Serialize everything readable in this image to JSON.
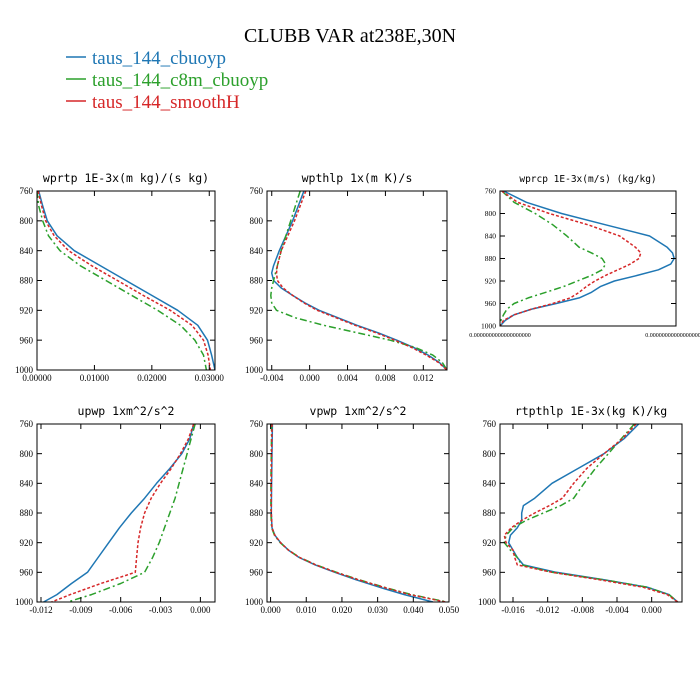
{
  "figure": {
    "title": "CLUBB VAR at238E,30N"
  },
  "legend": {
    "placement": "top-left",
    "entries": [
      {
        "label": "taus_144_cbuoyp",
        "color": "#1f77b4"
      },
      {
        "label": "taus_144_c8m_cbuoyp",
        "color": "#2ca02c"
      },
      {
        "label": "taus_144_smoothH",
        "color": "#d62728"
      }
    ]
  },
  "chart_data": [
    {
      "type": "line",
      "title": "wprtp  1E-3x(m kg)/(s kg)",
      "xlim": [
        0,
        0.031
      ],
      "ylim": [
        760,
        1000
      ],
      "yticks": [
        760,
        800,
        840,
        880,
        920,
        960,
        1000
      ],
      "ytick_labels": [
        "760",
        "800",
        "840",
        "880",
        "920",
        "960",
        "1000"
      ],
      "xticks": [
        0,
        0.01,
        0.02,
        0.03
      ],
      "xtick_labels": [
        "0.00000",
        "0.01000",
        "0.02000",
        "0.03000"
      ],
      "y": [
        760,
        780,
        800,
        820,
        840,
        860,
        880,
        900,
        920,
        940,
        960,
        980,
        1000
      ],
      "series": [
        {
          "name": "taus_144_cbuoyp",
          "values": [
            0.0003,
            0.001,
            0.0018,
            0.0035,
            0.0065,
            0.011,
            0.0155,
            0.02,
            0.0245,
            0.028,
            0.0297,
            0.0304,
            0.031
          ]
        },
        {
          "name": "taus_144_c8m_cbuoyp",
          "values": [
            0,
            0.0003,
            0.001,
            0.002,
            0.004,
            0.0075,
            0.012,
            0.0165,
            0.021,
            0.025,
            0.0275,
            0.029,
            0.0295
          ]
        },
        {
          "name": "taus_144_smoothH",
          "values": [
            0.0002,
            0.0008,
            0.0015,
            0.003,
            0.0055,
            0.0095,
            0.014,
            0.0185,
            0.0232,
            0.027,
            0.029,
            0.0298,
            0.0302
          ]
        }
      ]
    },
    {
      "type": "line",
      "title": "wpthlp  1x(m K)/s",
      "xlim": [
        -0.0045,
        0.0145
      ],
      "ylim": [
        760,
        1000
      ],
      "yticks": [
        760,
        800,
        840,
        880,
        920,
        960,
        1000
      ],
      "ytick_labels": [
        "760",
        "800",
        "840",
        "880",
        "920",
        "960",
        "1000"
      ],
      "xticks": [
        -0.004,
        0,
        0.004,
        0.008,
        0.012
      ],
      "xtick_labels": [
        "-0.004",
        "0.000",
        "0.004",
        "0.008",
        "0.012"
      ],
      "y": [
        760,
        780,
        800,
        820,
        840,
        860,
        870,
        880,
        890,
        900,
        910,
        920,
        930,
        940,
        950,
        960,
        970,
        980,
        990,
        1000
      ],
      "series": [
        {
          "name": "taus_144_cbuoyp",
          "values": [
            -0.0006,
            -0.0012,
            -0.0018,
            -0.0025,
            -0.0032,
            -0.0038,
            -0.004,
            -0.0038,
            -0.003,
            -0.0018,
            -0.0005,
            0.001,
            0.003,
            0.005,
            0.0072,
            0.0092,
            0.011,
            0.0125,
            0.0137,
            0.0145
          ]
        },
        {
          "name": "taus_144_c8m_cbuoyp",
          "values": [
            -0.001,
            -0.0015,
            -0.002,
            -0.0025,
            -0.003,
            -0.0034,
            -0.0036,
            -0.0038,
            -0.004,
            -0.0041,
            -0.004,
            -0.0035,
            -0.0015,
            0.0015,
            0.005,
            0.0085,
            0.0112,
            0.013,
            0.014,
            0.0145
          ]
        },
        {
          "name": "taus_144_smoothH",
          "values": [
            -0.0004,
            -0.001,
            -0.0016,
            -0.0023,
            -0.003,
            -0.0034,
            -0.0035,
            -0.0034,
            -0.0028,
            -0.0018,
            -0.0006,
            0.0008,
            0.0028,
            0.0048,
            0.007,
            0.009,
            0.0108,
            0.0123,
            0.0136,
            0.0145
          ]
        }
      ]
    },
    {
      "type": "line",
      "title": "wprcp  1E-3x(m/s) (kg/kg)",
      "xlim": [
        0,
        1
      ],
      "ylim": [
        760,
        1000
      ],
      "yticks": [
        760,
        800,
        840,
        880,
        920,
        960,
        1000
      ],
      "ytick_labels": [
        "760",
        "800",
        "840",
        "880",
        "920",
        "960",
        "1000"
      ],
      "xticks": [
        0,
        1
      ],
      "xtick_labels": [
        "0.0000000000000000000",
        "0.0000000000000000000"
      ],
      "y": [
        760,
        780,
        800,
        820,
        840,
        860,
        870,
        880,
        890,
        900,
        910,
        920,
        930,
        940,
        950,
        960,
        970,
        980,
        990,
        1000
      ],
      "series": [
        {
          "name": "taus_144_cbuoyp",
          "values": [
            0.02,
            0.15,
            0.35,
            0.6,
            0.85,
            0.95,
            0.98,
            0.99,
            0.97,
            0.9,
            0.78,
            0.65,
            0.57,
            0.52,
            0.45,
            0.32,
            0.18,
            0.08,
            0.03,
            0
          ]
        },
        {
          "name": "taus_144_c8m_cbuoyp",
          "values": [
            0.01,
            0.08,
            0.2,
            0.3,
            0.38,
            0.45,
            0.52,
            0.58,
            0.6,
            0.58,
            0.52,
            0.44,
            0.36,
            0.26,
            0.16,
            0.08,
            0.04,
            0.02,
            0.005,
            0
          ]
        },
        {
          "name": "taus_144_smoothH",
          "values": [
            0.01,
            0.1,
            0.28,
            0.5,
            0.68,
            0.77,
            0.8,
            0.79,
            0.74,
            0.67,
            0.6,
            0.54,
            0.49,
            0.45,
            0.4,
            0.3,
            0.18,
            0.08,
            0.02,
            0
          ]
        }
      ]
    },
    {
      "type": "line",
      "title": "upwp  1xm^2/s^2",
      "xlim": [
        -0.0123,
        0.0011
      ],
      "ylim": [
        760,
        1000
      ],
      "yticks": [
        760,
        800,
        840,
        880,
        920,
        960,
        1000
      ],
      "ytick_labels": [
        "760",
        "800",
        "840",
        "880",
        "920",
        "960",
        "1000"
      ],
      "xticks": [
        -0.012,
        -0.009,
        -0.006,
        -0.003,
        0
      ],
      "xtick_labels": [
        "-0.012",
        "-0.009",
        "-0.006",
        "-0.003",
        "0.000"
      ],
      "y": [
        760,
        780,
        800,
        820,
        840,
        860,
        880,
        900,
        920,
        940,
        960,
        975,
        990,
        1000
      ],
      "series": [
        {
          "name": "taus_144_cbuoyp",
          "values": [
            -0.0005,
            -0.0008,
            -0.0014,
            -0.0023,
            -0.0033,
            -0.0042,
            -0.0052,
            -0.0061,
            -0.0069,
            -0.0077,
            -0.0085,
            -0.0097,
            -0.0108,
            -0.0118
          ]
        },
        {
          "name": "taus_144_c8m_cbuoyp",
          "values": [
            -0.0004,
            -0.0007,
            -0.001,
            -0.0013,
            -0.0016,
            -0.0019,
            -0.0023,
            -0.0027,
            -0.0031,
            -0.0036,
            -0.0042,
            -0.006,
            -0.0082,
            -0.01
          ]
        },
        {
          "name": "taus_144_smoothH",
          "values": [
            -0.0005,
            -0.0009,
            -0.0015,
            -0.0022,
            -0.003,
            -0.0037,
            -0.0042,
            -0.0045,
            -0.0047,
            -0.0048,
            -0.0049,
            -0.0075,
            -0.0098,
            -0.0112
          ]
        }
      ]
    },
    {
      "type": "line",
      "title": "vpwp  1xm^2/s^2",
      "xlim": [
        -0.001,
        0.05
      ],
      "ylim": [
        760,
        1000
      ],
      "yticks": [
        760,
        800,
        840,
        880,
        920,
        960,
        1000
      ],
      "ytick_labels": [
        "760",
        "800",
        "840",
        "880",
        "920",
        "960",
        "1000"
      ],
      "xticks": [
        0,
        0.01,
        0.02,
        0.03,
        0.04,
        0.05
      ],
      "xtick_labels": [
        "0.000",
        "0.010",
        "0.020",
        "0.030",
        "0.040",
        "0.050"
      ],
      "y": [
        760,
        800,
        840,
        880,
        900,
        910,
        920,
        930,
        940,
        950,
        960,
        970,
        980,
        990,
        1000
      ],
      "series": [
        {
          "name": "taus_144_cbuoyp",
          "values": [
            0.0005,
            0.0004,
            0.0003,
            0.0002,
            0.0004,
            0.0012,
            0.0028,
            0.005,
            0.008,
            0.0125,
            0.018,
            0.024,
            0.0305,
            0.0375,
            0.0455
          ]
        },
        {
          "name": "taus_144_c8m_cbuoyp",
          "values": [
            0.0003,
            0.0002,
            0.0001,
            0.0001,
            0.0003,
            0.0011,
            0.0027,
            0.005,
            0.0082,
            0.0128,
            0.0185,
            0.0248,
            0.0318,
            0.0395,
            0.0495
          ]
        },
        {
          "name": "taus_144_smoothH",
          "values": [
            0.0004,
            0.0003,
            0.0002,
            0.0002,
            0.0004,
            0.0012,
            0.0028,
            0.005,
            0.0081,
            0.0127,
            0.0183,
            0.0246,
            0.0316,
            0.039,
            0.049
          ]
        }
      ]
    },
    {
      "type": "line",
      "title": "rtpthlp  1E-3x(kg K)/kg",
      "xlim": [
        -0.0175,
        0.0035
      ],
      "ylim": [
        760,
        1000
      ],
      "yticks": [
        760,
        800,
        840,
        880,
        920,
        960,
        1000
      ],
      "ytick_labels": [
        "760",
        "800",
        "840",
        "880",
        "920",
        "960",
        "1000"
      ],
      "xticks": [
        -0.016,
        -0.012,
        -0.008,
        -0.004,
        0
      ],
      "xtick_labels": [
        "-0.016",
        "-0.012",
        "-0.008",
        "-0.004",
        "0.000"
      ],
      "y": [
        760,
        780,
        800,
        820,
        840,
        860,
        870,
        880,
        890,
        900,
        910,
        920,
        930,
        940,
        950,
        960,
        970,
        980,
        990,
        1000
      ],
      "series": [
        {
          "name": "taus_144_cbuoyp",
          "values": [
            -0.0015,
            -0.0032,
            -0.0055,
            -0.0085,
            -0.0115,
            -0.0135,
            -0.0148,
            -0.015,
            -0.015,
            -0.0155,
            -0.0163,
            -0.0165,
            -0.016,
            -0.0155,
            -0.0148,
            -0.011,
            -0.0055,
            -0.0005,
            0.002,
            0.003
          ]
        },
        {
          "name": "taus_144_c8m_cbuoyp",
          "values": [
            -0.002,
            -0.0035,
            -0.005,
            -0.0065,
            -0.0078,
            -0.009,
            -0.0105,
            -0.0125,
            -0.0145,
            -0.016,
            -0.0168,
            -0.017,
            -0.0163,
            -0.0155,
            -0.015,
            -0.0115,
            -0.0055,
            -0.0005,
            0.002,
            0.003
          ]
        },
        {
          "name": "taus_144_smoothH",
          "values": [
            -0.0018,
            -0.0034,
            -0.0055,
            -0.0075,
            -0.009,
            -0.0103,
            -0.0118,
            -0.0135,
            -0.015,
            -0.0162,
            -0.017,
            -0.0168,
            -0.016,
            -0.0158,
            -0.0155,
            -0.0115,
            -0.006,
            -0.001,
            0.0018,
            0.003
          ]
        }
      ]
    }
  ]
}
